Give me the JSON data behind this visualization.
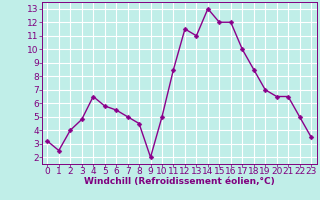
{
  "x": [
    0,
    1,
    2,
    3,
    4,
    5,
    6,
    7,
    8,
    9,
    10,
    11,
    12,
    13,
    14,
    15,
    16,
    17,
    18,
    19,
    20,
    21,
    22,
    23
  ],
  "y": [
    3.2,
    2.5,
    4.0,
    4.8,
    6.5,
    5.8,
    5.5,
    5.0,
    4.5,
    2.0,
    5.0,
    8.5,
    11.5,
    11.0,
    13.0,
    12.0,
    12.0,
    10.0,
    8.5,
    7.0,
    6.5,
    6.5,
    5.0,
    3.5
  ],
  "line_color": "#8B008B",
  "marker_color": "#8B008B",
  "bg_color": "#C0EEE8",
  "grid_color": "#ffffff",
  "xlabel": "Windchill (Refroidissement éolien,°C)",
  "xlim": [
    -0.5,
    23.5
  ],
  "ylim": [
    1.5,
    13.5
  ],
  "yticks": [
    2,
    3,
    4,
    5,
    6,
    7,
    8,
    9,
    10,
    11,
    12,
    13
  ],
  "xticks": [
    0,
    1,
    2,
    3,
    4,
    5,
    6,
    7,
    8,
    9,
    10,
    11,
    12,
    13,
    14,
    15,
    16,
    17,
    18,
    19,
    20,
    21,
    22,
    23
  ],
  "xlabel_fontsize": 6.5,
  "tick_fontsize": 6.5,
  "label_color": "#800080",
  "marker_size": 2.5,
  "line_width": 1.0
}
